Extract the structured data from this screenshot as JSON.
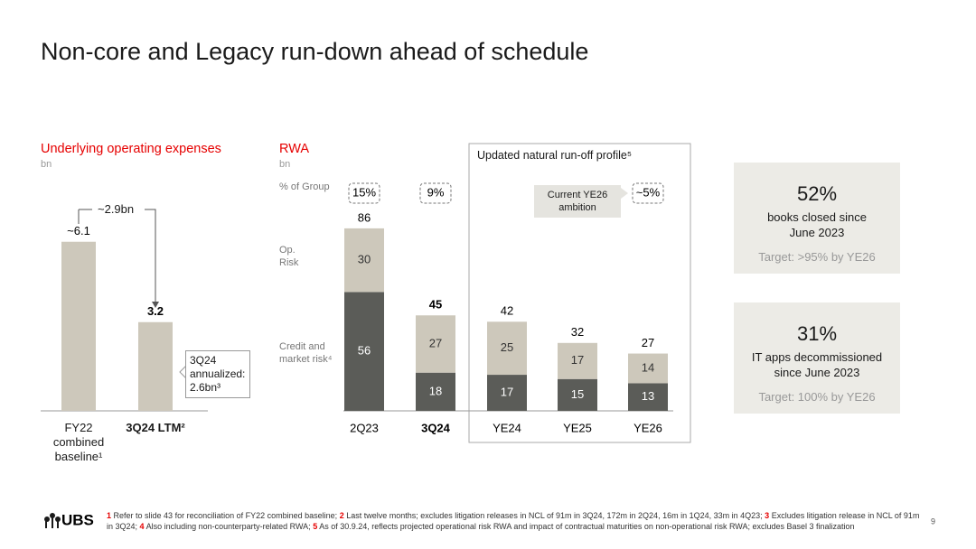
{
  "title": "Non-core and Legacy run-down ahead of schedule",
  "chart_data": [
    {
      "type": "bar",
      "title": "Underlying operating expenses",
      "subtitle": "bn",
      "categories": [
        "FY22 combined baseline¹",
        "3Q24 LTM²"
      ],
      "values": [
        6.1,
        3.2
      ],
      "value_labels": [
        "~6.1",
        "3.2"
      ],
      "color": "#cdc8bb",
      "annotations": [
        "~2.9bn",
        "3Q24 annualized: 2.6bn³"
      ]
    },
    {
      "type": "stacked_bar",
      "title": "RWA",
      "subtitle": "bn",
      "categories": [
        "2Q23",
        "3Q24",
        "YE24",
        "YE25",
        "YE26"
      ],
      "series": [
        {
          "name": "Credit and market risk⁴",
          "color": "#5b5c58",
          "values": [
            56,
            18,
            17,
            15,
            13
          ]
        },
        {
          "name": "Op. Risk",
          "color": "#cdc8bb",
          "values": [
            30,
            27,
            25,
            17,
            14
          ]
        }
      ],
      "totals": [
        86,
        45,
        42,
        32,
        27
      ],
      "pct_group": {
        "name": "% of Group",
        "values": [
          15,
          9,
          null,
          null,
          5
        ],
        "value_labels": [
          "15%",
          "9%",
          null,
          null,
          "~5%"
        ]
      },
      "annotations": [
        "Updated natural run-off profile⁵",
        "Current YE26 ambition"
      ]
    }
  ],
  "stats": [
    {
      "value": "52%",
      "text": "books closed since June 2023",
      "target": "Target: >95% by YE26"
    },
    {
      "value": "31%",
      "text": "IT apps decommissioned since June 2023",
      "target": "Target: 100% by YE26"
    }
  ],
  "footnotes": [
    {
      "num": "1",
      "text": "Refer to slide 43 for reconciliation of FY22 combined baseline;"
    },
    {
      "num": "2",
      "text": "Last twelve months; excludes litigation releases in NCL of 91m in 3Q24, 172m in 2Q24, 16m in 1Q24, 33m in 4Q23;"
    },
    {
      "num": "3",
      "text": "Excludes litigation release in NCL of 91m in 3Q24;"
    },
    {
      "num": "4",
      "text": "Also including non-counterparty-related RWA;"
    },
    {
      "num": "5",
      "text": "As of 30.9.24, reflects projected operational risk RWA and impact of contractual maturities on non-operational risk RWA; excludes Basel 3 finalization"
    }
  ],
  "logo": "UBS",
  "page_number": "9"
}
